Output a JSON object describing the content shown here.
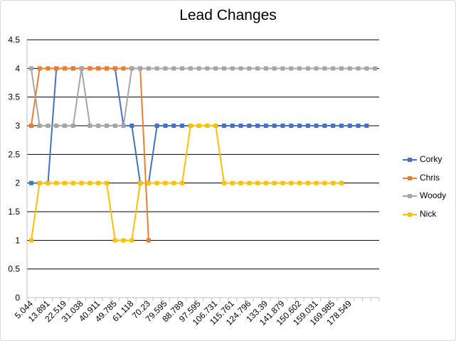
{
  "chart_data": {
    "type": "line",
    "title": "Lead Changes",
    "xlabel": "",
    "ylabel": "",
    "ylim": [
      0,
      4.5
    ],
    "y_ticks": [
      "0",
      "0.5",
      "1",
      "1.5",
      "2",
      "2.5",
      "3",
      "3.5",
      "4",
      "4.5"
    ],
    "x_tick_labels": [
      "5.044",
      "13.891",
      "22.519",
      "31.038",
      "40.911",
      "49.785",
      "61.118",
      "70.23",
      "79.595",
      "88.789",
      "97.595",
      "106.731",
      "115.761",
      "124.796",
      "133.39",
      "141.879",
      "150.602",
      "159.031",
      "169.985",
      "178.549"
    ],
    "num_categories": 42,
    "legend_position": "right",
    "grid": true,
    "series": [
      {
        "name": "Corky",
        "color": "#4472C4",
        "values": [
          2,
          2,
          2,
          4,
          4,
          4,
          4,
          4,
          4,
          4,
          4,
          3,
          3,
          2,
          2,
          3,
          3,
          3,
          3,
          3,
          3,
          3,
          3,
          3,
          3,
          3,
          3,
          3,
          3,
          3,
          3,
          3,
          3,
          3,
          3,
          3,
          3,
          3,
          3,
          3,
          3
        ]
      },
      {
        "name": "Chris",
        "color": "#ED7D31",
        "values": [
          3,
          4,
          4,
          4,
          4,
          4,
          4,
          4,
          4,
          4,
          4,
          4,
          4,
          4,
          1
        ]
      },
      {
        "name": "Woody",
        "color": "#A5A5A5",
        "values": [
          4,
          3,
          3,
          3,
          3,
          3,
          4,
          3,
          3,
          3,
          3,
          3,
          4,
          4,
          4,
          4,
          4,
          4,
          4,
          4,
          4,
          4,
          4,
          4,
          4,
          4,
          4,
          4,
          4,
          4,
          4,
          4,
          4,
          4,
          4,
          4,
          4,
          4,
          4,
          4,
          4,
          4
        ]
      },
      {
        "name": "Nick",
        "color": "#FFC000",
        "values": [
          1,
          2,
          2,
          2,
          2,
          2,
          2,
          2,
          2,
          2,
          1,
          1,
          1,
          2,
          2,
          2,
          2,
          2,
          2,
          3,
          3,
          3,
          3,
          2,
          2,
          2,
          2,
          2,
          2,
          2,
          2,
          2,
          2,
          2,
          2,
          2,
          2,
          2
        ]
      }
    ]
  }
}
